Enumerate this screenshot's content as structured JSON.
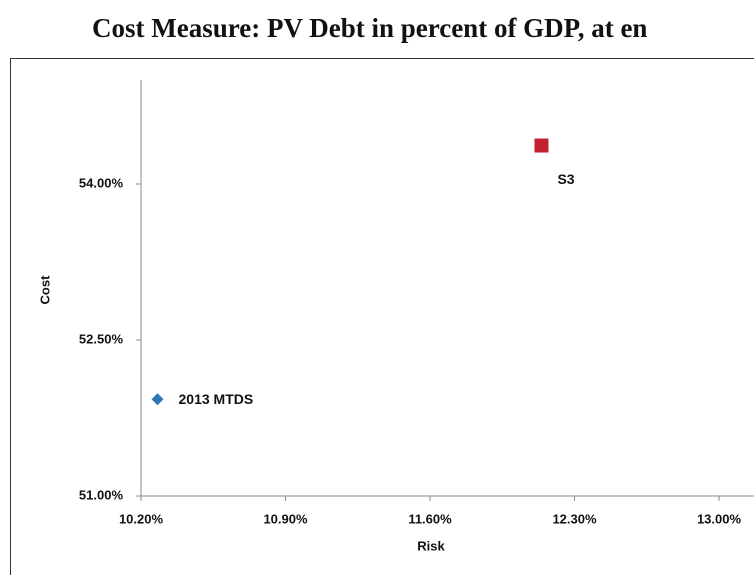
{
  "chart_data": {
    "type": "scatter",
    "title": "Cost Measure: PV Debt in percent of GDP, at en",
    "x_label": "Risk",
    "y_label": "Cost",
    "xlim": [
      10.2,
      13.0
    ],
    "xticks": [
      {
        "value": 10.2,
        "label": "10.20%"
      },
      {
        "value": 10.9,
        "label": "10.90%"
      },
      {
        "value": 11.6,
        "label": "11.60%"
      },
      {
        "value": 12.3,
        "label": "12.30%"
      },
      {
        "value": 13.0,
        "label": "13.00%"
      }
    ],
    "ylim": [
      51.0,
      55.0
    ],
    "yticks": [
      {
        "value": 51.0,
        "label": "51.00%"
      },
      {
        "value": 52.5,
        "label": "52.50%"
      },
      {
        "value": 54.0,
        "label": "54.00%"
      }
    ],
    "series": [
      {
        "name": "2013 MTDS",
        "color": "#2e75b6",
        "marker": "diamond",
        "x": [
          10.28
        ],
        "values": [
          51.93
        ]
      },
      {
        "name": "S3",
        "color": "#c0202f",
        "marker": "square",
        "x": [
          12.14
        ],
        "values": [
          54.37
        ]
      }
    ]
  }
}
